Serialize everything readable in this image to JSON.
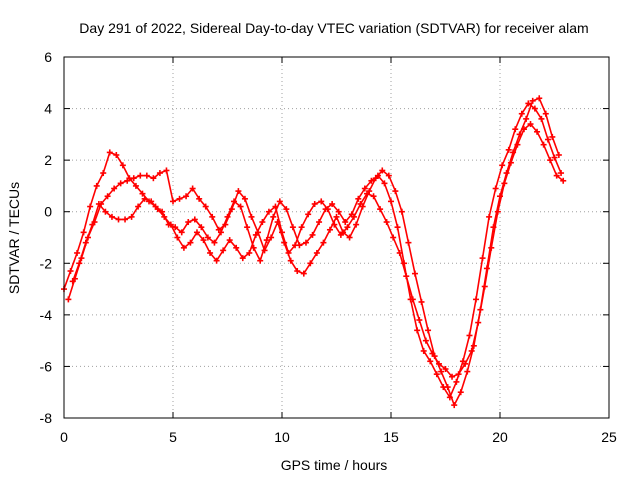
{
  "chart_data": {
    "type": "scatter",
    "title": "Day 291 of 2022, Sidereal Day-to-day VTEC variation (SDTVAR) for receiver alam",
    "xlabel": "GPS time / hours",
    "ylabel": "SDTVAR / TECUs",
    "xlim": [
      0,
      25
    ],
    "ylim": [
      -8,
      6
    ],
    "xticks": [
      "0",
      "5",
      "10",
      "15",
      "20",
      "25"
    ],
    "yticks": [
      "-8",
      "-6",
      "-4",
      "-2",
      "0",
      "2",
      "4",
      "6"
    ],
    "grid": true,
    "marker": "plus",
    "color": "#ff0000",
    "series": [
      {
        "x": [
          0.0,
          0.3,
          0.6,
          0.9,
          1.2,
          1.5,
          1.8,
          2.1,
          2.4,
          2.7,
          3.0,
          3.3,
          3.6,
          3.9,
          4.2,
          4.5,
          4.8,
          5.1,
          5.4,
          5.7,
          6.0,
          6.3,
          6.6,
          6.9,
          7.2,
          7.5,
          7.8,
          8.1,
          8.4,
          8.7,
          9.0,
          9.3,
          9.6,
          9.9,
          10.2,
          10.5,
          10.8,
          11.1,
          11.4,
          11.7,
          12.0,
          12.3,
          12.6,
          12.9,
          13.2,
          13.5,
          13.8,
          14.1,
          14.4,
          14.7,
          15.0,
          15.3,
          15.6,
          15.9,
          16.2,
          16.5,
          16.8,
          17.1,
          17.4,
          17.7,
          18.0,
          18.3,
          18.6,
          18.9,
          19.2,
          19.5,
          19.8,
          20.1,
          20.4,
          20.7,
          21.0,
          21.3,
          21.6,
          21.9,
          22.2,
          22.5,
          22.8
        ],
        "y": [
          -3.0,
          -2.3,
          -1.6,
          -0.8,
          0.2,
          1.0,
          1.5,
          2.3,
          2.2,
          1.8,
          1.3,
          1.0,
          0.7,
          0.4,
          0.2,
          0.0,
          -0.5,
          -0.6,
          -0.8,
          -0.4,
          -0.3,
          -0.6,
          -1.0,
          -1.2,
          -0.8,
          -0.2,
          0.4,
          0.2,
          -0.6,
          -1.4,
          -1.9,
          -1.1,
          -0.2,
          0.4,
          0.1,
          -0.6,
          -1.3,
          -1.2,
          -0.9,
          -0.4,
          0.1,
          0.3,
          0.0,
          -0.4,
          -0.1,
          0.5,
          0.9,
          1.2,
          1.4,
          1.1,
          0.4,
          -0.6,
          -2.0,
          -3.4,
          -4.6,
          -5.4,
          -5.8,
          -6.3,
          -6.8,
          -7.2,
          -6.6,
          -5.8,
          -4.8,
          -3.4,
          -1.8,
          -0.2,
          0.9,
          1.8,
          2.4,
          3.2,
          3.8,
          4.2,
          4.0,
          3.6,
          2.8,
          2.1,
          1.5
        ]
      },
      {
        "x": [
          0.2,
          0.5,
          0.8,
          1.1,
          1.4,
          1.7,
          2.0,
          2.3,
          2.6,
          2.9,
          3.2,
          3.5,
          3.8,
          4.1,
          4.4,
          4.7,
          5.0,
          5.3,
          5.6,
          5.9,
          6.2,
          6.5,
          6.8,
          7.1,
          7.4,
          7.7,
          8.0,
          8.3,
          8.6,
          8.9,
          9.2,
          9.5,
          9.8,
          10.1,
          10.4,
          10.7,
          11.0,
          11.3,
          11.6,
          11.9,
          12.2,
          12.5,
          12.8,
          13.1,
          13.4,
          13.7,
          14.0,
          14.3,
          14.6,
          14.9,
          15.2,
          15.5,
          15.8,
          16.1,
          16.4,
          16.7,
          17.0,
          17.3,
          17.6,
          17.9,
          18.2,
          18.5,
          18.8,
          19.1,
          19.4,
          19.7,
          20.0,
          20.3,
          20.6,
          20.9,
          21.2,
          21.5,
          21.8,
          22.1,
          22.4,
          22.7
        ],
        "y": [
          -3.4,
          -2.6,
          -1.8,
          -1.0,
          -0.4,
          0.3,
          0.6,
          0.9,
          1.1,
          1.2,
          1.3,
          1.4,
          1.4,
          1.3,
          1.5,
          1.6,
          0.4,
          0.5,
          0.6,
          0.9,
          0.5,
          0.2,
          -0.2,
          -0.7,
          -0.5,
          0.1,
          0.8,
          0.5,
          -0.2,
          -0.8,
          -1.5,
          -1.0,
          -0.4,
          -1.2,
          -1.9,
          -2.3,
          -2.4,
          -2.0,
          -1.6,
          -1.2,
          -0.7,
          -0.2,
          -0.8,
          -1.0,
          -0.5,
          0.2,
          0.8,
          1.3,
          1.6,
          1.4,
          0.8,
          0.0,
          -1.2,
          -2.4,
          -3.5,
          -4.6,
          -5.6,
          -6.2,
          -6.8,
          -7.5,
          -7.0,
          -6.2,
          -5.2,
          -3.8,
          -2.2,
          -0.6,
          0.6,
          1.5,
          2.3,
          3.0,
          3.6,
          4.3,
          4.4,
          3.8,
          2.9,
          2.2
        ]
      },
      {
        "x": [
          0.4,
          0.7,
          1.0,
          1.3,
          1.6,
          1.9,
          2.2,
          2.5,
          2.8,
          3.1,
          3.4,
          3.7,
          4.0,
          4.3,
          4.6,
          4.9,
          5.2,
          5.5,
          5.8,
          6.1,
          6.4,
          6.7,
          7.0,
          7.3,
          7.6,
          7.9,
          8.2,
          8.5,
          8.8,
          9.1,
          9.4,
          9.7,
          10.0,
          10.3,
          10.6,
          10.9,
          11.2,
          11.5,
          11.8,
          12.1,
          12.4,
          12.7,
          13.0,
          13.3,
          13.6,
          13.9,
          14.2,
          14.5,
          14.8,
          15.1,
          15.4,
          15.7,
          16.0,
          16.3,
          16.6,
          16.9,
          17.2,
          17.5,
          17.8,
          18.1,
          18.4,
          18.7,
          19.0,
          19.3,
          19.6,
          19.9,
          20.2,
          20.5,
          20.8,
          21.1,
          21.4,
          21.7,
          22.0,
          22.3,
          22.6,
          22.9
        ],
        "y": [
          -2.7,
          -2.0,
          -1.2,
          -0.5,
          0.3,
          0.0,
          -0.2,
          -0.3,
          -0.3,
          -0.2,
          0.2,
          0.5,
          0.4,
          0.1,
          -0.2,
          -0.5,
          -1.0,
          -1.4,
          -1.2,
          -0.8,
          -1.1,
          -1.6,
          -1.9,
          -1.5,
          -1.1,
          -1.4,
          -1.8,
          -1.6,
          -0.9,
          -0.4,
          0.0,
          0.2,
          -0.8,
          -1.6,
          -1.3,
          -0.6,
          -0.1,
          0.3,
          0.4,
          0.1,
          -0.5,
          -0.9,
          -0.6,
          -0.2,
          0.3,
          0.7,
          0.6,
          0.1,
          -0.4,
          -1.0,
          -1.6,
          -2.5,
          -3.4,
          -4.2,
          -5.0,
          -5.5,
          -5.9,
          -6.1,
          -6.4,
          -6.3,
          -5.9,
          -5.4,
          -4.3,
          -2.9,
          -1.4,
          0.0,
          1.1,
          1.9,
          2.6,
          3.2,
          3.4,
          3.1,
          2.6,
          2.0,
          1.4,
          1.2
        ]
      }
    ]
  }
}
